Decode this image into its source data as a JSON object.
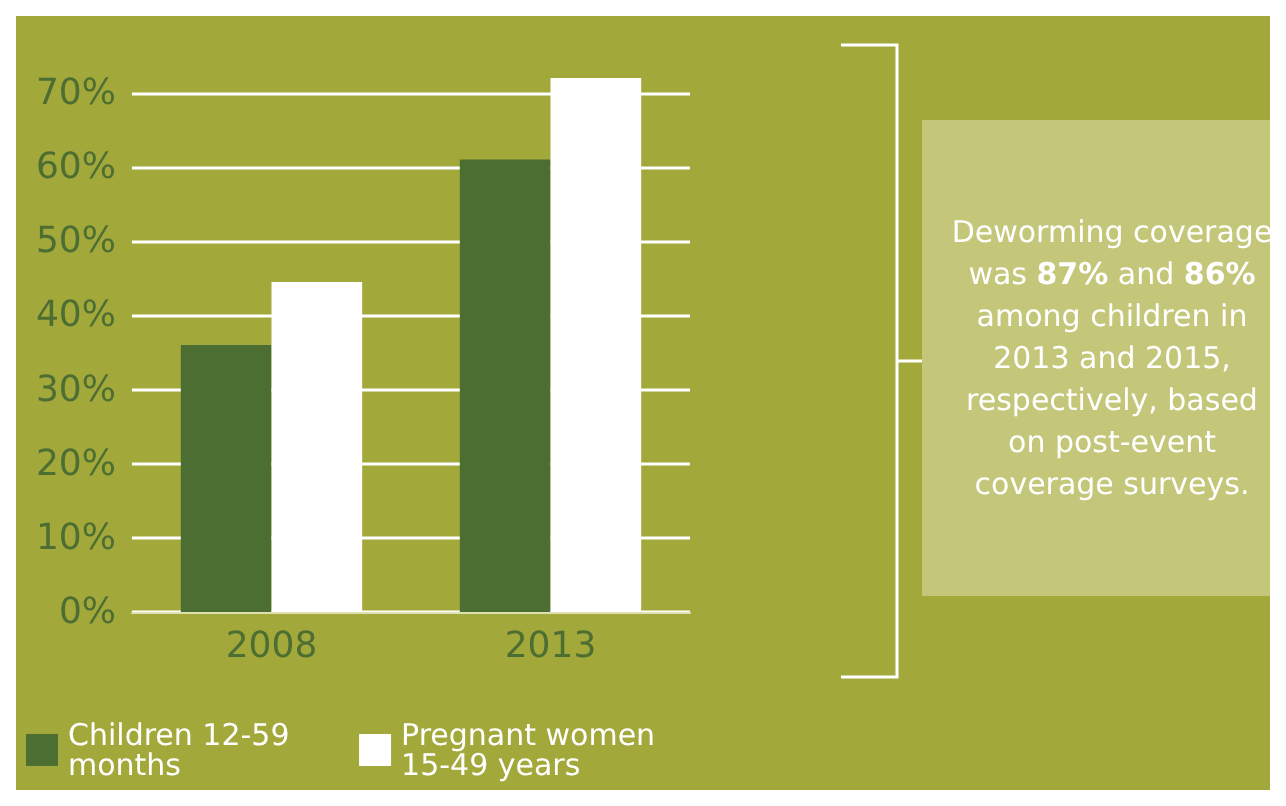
{
  "chart_data": {
    "type": "bar",
    "categories": [
      "2008",
      "2013"
    ],
    "series": [
      {
        "name": "Children 12-59 months",
        "color": "#4d6e33",
        "values": [
          36,
          61
        ]
      },
      {
        "name": "Pregnant women 15-49 years",
        "color": "#ffffff",
        "values": [
          44.5,
          72
        ]
      }
    ],
    "ylim": [
      0,
      72
    ],
    "yticks": [
      {
        "value": 0,
        "label": "0%"
      },
      {
        "value": 10,
        "label": "10%"
      },
      {
        "value": 20,
        "label": "20%"
      },
      {
        "value": 30,
        "label": "30%"
      },
      {
        "value": 40,
        "label": "40%"
      },
      {
        "value": 50,
        "label": "50%"
      },
      {
        "value": 60,
        "label": "60%"
      },
      {
        "value": 70,
        "label": "70%"
      }
    ],
    "grid": "y",
    "legend": "bottom left",
    "annotations": [
      "Deworming coverage was 87% and 86% among children in 2013 and 2015, respectively, based on post-event coverage surveys."
    ]
  }
}
